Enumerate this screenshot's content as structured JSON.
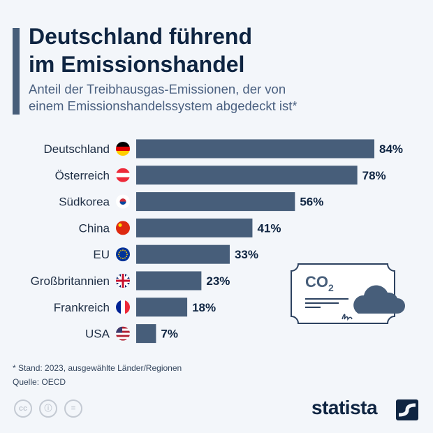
{
  "header": {
    "title_line1": "Deutschland führend",
    "title_line2": "im Emissionshandel",
    "subtitle_line1": "Anteil der Treibhausgas-Emissionen, der von",
    "subtitle_line2": "einem Emissionshandelssystem abgedeckt ist*"
  },
  "chart_data": {
    "type": "bar",
    "orientation": "horizontal",
    "categories": [
      "Deutschland",
      "Österreich",
      "Südkorea",
      "China",
      "EU",
      "Großbritannien",
      "Frankreich",
      "USA"
    ],
    "values": [
      84,
      78,
      56,
      41,
      33,
      23,
      18,
      7
    ],
    "labels": [
      "84%",
      "78%",
      "56%",
      "41%",
      "33%",
      "23%",
      "18%",
      "7%"
    ],
    "unit": "%",
    "xlim": [
      0,
      100
    ],
    "grid": false,
    "flags": [
      "flag-germany",
      "flag-austria",
      "flag-south-korea",
      "flag-china",
      "flag-eu",
      "flag-uk",
      "flag-france",
      "flag-usa"
    ],
    "bar_color": "#475e7a"
  },
  "illustration": {
    "text": "CO",
    "subscript": "2"
  },
  "footer": {
    "note": "* Stand: 2023, ausgewählte Länder/Regionen",
    "source": "Quelle: OECD",
    "brand": "statista",
    "cc_icons": [
      "cc",
      "by",
      "nd"
    ]
  },
  "colors": {
    "background": "#f3f6fa",
    "title": "#0f2542",
    "accent": "#475e7a"
  }
}
